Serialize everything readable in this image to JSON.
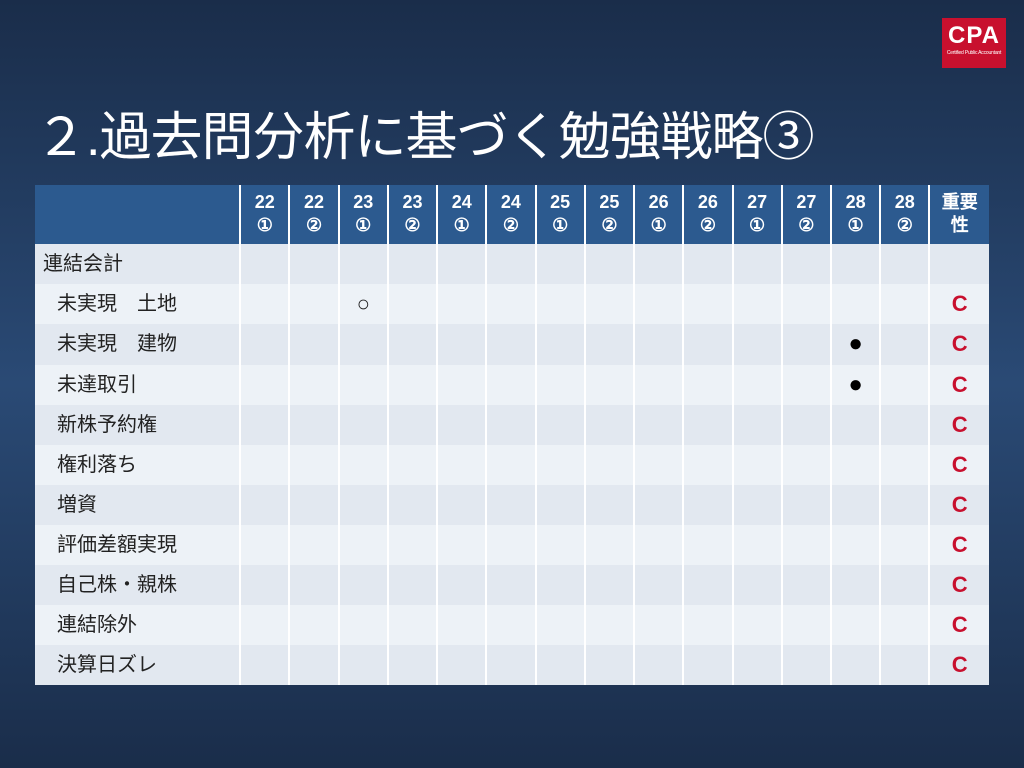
{
  "logo": {
    "main": "CPA",
    "sub": "Certified Public Accountant"
  },
  "title": "２.過去問分析に基づく勉強戦略③",
  "table": {
    "header_cols": [
      "22\n①",
      "22\n②",
      "23\n①",
      "23\n②",
      "24\n①",
      "24\n②",
      "25\n①",
      "25\n②",
      "26\n①",
      "26\n②",
      "27\n①",
      "27\n②",
      "28\n①",
      "28\n②"
    ],
    "importance_header": "重要\n性",
    "rows": [
      {
        "label": "連結会計",
        "indent": false,
        "marks": [
          "",
          "",
          "",
          "",
          "",
          "",
          "",
          "",
          "",
          "",
          "",
          "",
          "",
          ""
        ],
        "importance": ""
      },
      {
        "label": "未実現　土地",
        "indent": true,
        "marks": [
          "",
          "",
          "○",
          "",
          "",
          "",
          "",
          "",
          "",
          "",
          "",
          "",
          "",
          ""
        ],
        "importance": "C"
      },
      {
        "label": "未実現　建物",
        "indent": true,
        "marks": [
          "",
          "",
          "",
          "",
          "",
          "",
          "",
          "",
          "",
          "",
          "",
          "",
          "●",
          ""
        ],
        "importance": "C"
      },
      {
        "label": "未達取引",
        "indent": true,
        "marks": [
          "",
          "",
          "",
          "",
          "",
          "",
          "",
          "",
          "",
          "",
          "",
          "",
          "●",
          ""
        ],
        "importance": "C"
      },
      {
        "label": "新株予約権",
        "indent": true,
        "marks": [
          "",
          "",
          "",
          "",
          "",
          "",
          "",
          "",
          "",
          "",
          "",
          "",
          "",
          ""
        ],
        "importance": "C"
      },
      {
        "label": "権利落ち",
        "indent": true,
        "marks": [
          "",
          "",
          "",
          "",
          "",
          "",
          "",
          "",
          "",
          "",
          "",
          "",
          "",
          ""
        ],
        "importance": "C"
      },
      {
        "label": "増資",
        "indent": true,
        "marks": [
          "",
          "",
          "",
          "",
          "",
          "",
          "",
          "",
          "",
          "",
          "",
          "",
          "",
          ""
        ],
        "importance": "C"
      },
      {
        "label": "評価差額実現",
        "indent": true,
        "marks": [
          "",
          "",
          "",
          "",
          "",
          "",
          "",
          "",
          "",
          "",
          "",
          "",
          "",
          ""
        ],
        "importance": "C"
      },
      {
        "label": "自己株・親株",
        "indent": true,
        "marks": [
          "",
          "",
          "",
          "",
          "",
          "",
          "",
          "",
          "",
          "",
          "",
          "",
          "",
          ""
        ],
        "importance": "C"
      },
      {
        "label": "連結除外",
        "indent": true,
        "marks": [
          "",
          "",
          "",
          "",
          "",
          "",
          "",
          "",
          "",
          "",
          "",
          "",
          "",
          ""
        ],
        "importance": "C"
      },
      {
        "label": "決算日ズレ",
        "indent": true,
        "marks": [
          "",
          "",
          "",
          "",
          "",
          "",
          "",
          "",
          "",
          "",
          "",
          "",
          "",
          ""
        ],
        "importance": "C"
      }
    ]
  },
  "colors": {
    "background_gradient_top": "#1a2d4a",
    "background_gradient_mid": "#2a4a75",
    "header_bg": "#2c5a8f",
    "band_a": "#e2e8f0",
    "band_b": "#edf2f7",
    "importance_color": "#c8102e",
    "logo_bg": "#c8102e"
  }
}
